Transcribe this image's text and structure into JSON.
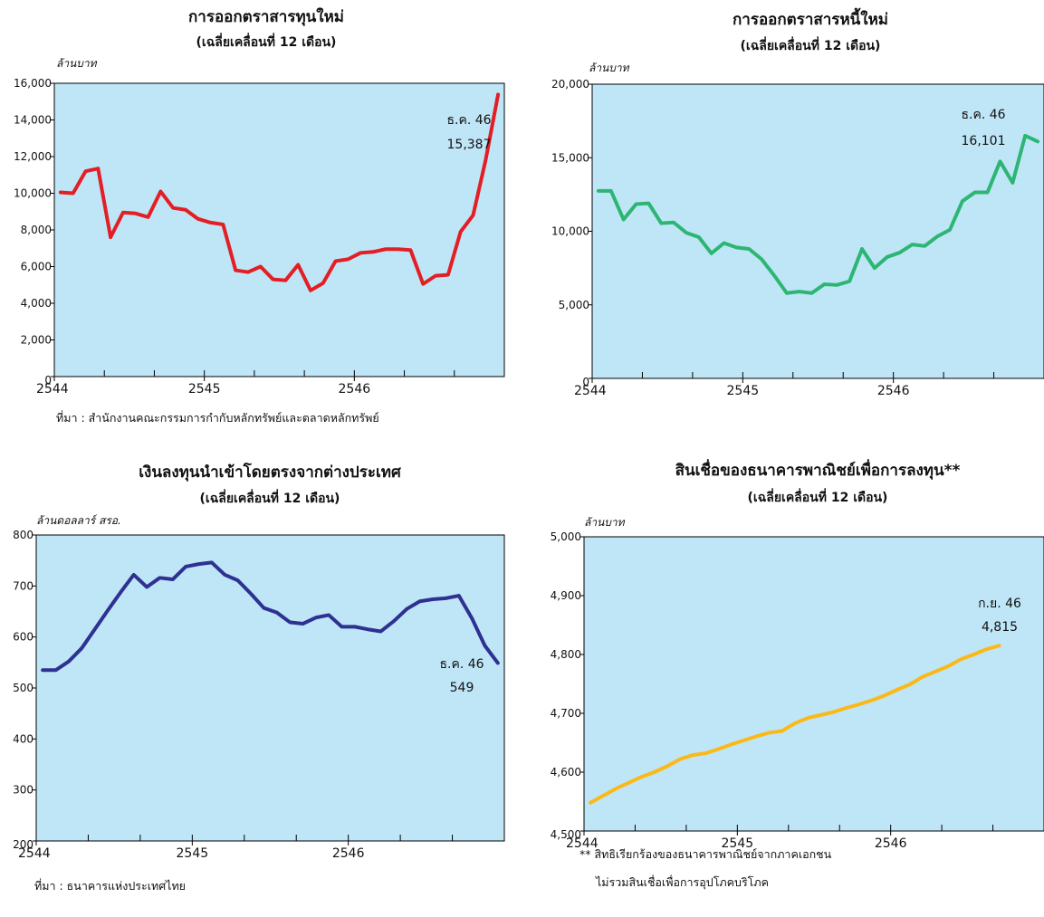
{
  "chart_data": [
    {
      "type": "line",
      "title": "การออกตราสารทุนใหม่",
      "subtitle": "(เฉลี่ยเคลื่อนที่ 12 เดือน)",
      "ylabel": "ล้านบาท",
      "ylim": [
        0,
        16000
      ],
      "yticks": [
        0,
        2000,
        4000,
        6000,
        8000,
        10000,
        12000,
        14000,
        16000
      ],
      "ytick_labels": [
        "0",
        "2,000",
        "4,000",
        "6,000",
        "8,000",
        "10,000",
        "12,000",
        "14,000",
        "16,000"
      ],
      "x_tick_labels": [
        "2544",
        "2545",
        "2546"
      ],
      "x_range": [
        "2544-01",
        "2546-12"
      ],
      "grid": false,
      "series": [
        {
          "color": "#e31e24",
          "x": [
            "2544-01",
            "2544-02",
            "2544-03",
            "2544-04",
            "2544-05",
            "2544-06",
            "2544-07",
            "2544-08",
            "2544-09",
            "2544-10",
            "2544-11",
            "2544-12",
            "2545-01",
            "2545-02",
            "2545-03",
            "2545-04",
            "2545-05",
            "2545-06",
            "2545-07",
            "2545-08",
            "2545-09",
            "2545-10",
            "2545-11",
            "2545-12",
            "2546-01",
            "2546-02",
            "2546-03",
            "2546-04",
            "2546-05",
            "2546-06",
            "2546-07",
            "2546-08",
            "2546-09",
            "2546-10",
            "2546-11",
            "2546-12"
          ],
          "values": [
            10050,
            10000,
            11200,
            11350,
            7600,
            8950,
            8900,
            8700,
            10100,
            9200,
            9100,
            8600,
            8400,
            8300,
            5800,
            5700,
            6000,
            5300,
            5250,
            6100,
            4700,
            5100,
            6300,
            6400,
            6750,
            6800,
            6950,
            6950,
            6900,
            5050,
            5500,
            5550,
            7900,
            8800,
            11800,
            15387
          ]
        }
      ],
      "annotations": [
        {
          "label": "ธ.ค. 46",
          "value": "15,387"
        }
      ],
      "source": "ที่มา : สำนักงานคณะกรรมการกำกับหลักทรัพย์และตลาดหลักทรัพย์"
    },
    {
      "type": "line",
      "title": "การออกตราสารหนี้ใหม่",
      "subtitle": "(เฉลี่ยเคลื่อนที่ 12 เดือน)",
      "ylabel": "ล้านบาท",
      "ylim": [
        0,
        20000
      ],
      "yticks": [
        0,
        5000,
        10000,
        15000,
        20000
      ],
      "ytick_labels": [
        "0",
        "5,000",
        "10,000",
        "15,000",
        "20,000"
      ],
      "x_tick_labels": [
        "2544",
        "2545",
        "2546"
      ],
      "x_range": [
        "2544-01",
        "2546-12"
      ],
      "grid": false,
      "series": [
        {
          "color": "#2db673",
          "x": [
            "2544-01",
            "2544-02",
            "2544-03",
            "2544-04",
            "2544-05",
            "2544-06",
            "2544-07",
            "2544-08",
            "2544-09",
            "2544-10",
            "2544-11",
            "2544-12",
            "2545-01",
            "2545-02",
            "2545-03",
            "2545-04",
            "2545-05",
            "2545-06",
            "2545-07",
            "2545-08",
            "2545-09",
            "2545-10",
            "2545-11",
            "2545-12",
            "2546-01",
            "2546-02",
            "2546-03",
            "2546-04",
            "2546-05",
            "2546-06",
            "2546-07",
            "2546-08",
            "2546-09",
            "2546-10",
            "2546-11",
            "2546-12"
          ],
          "values": [
            12750,
            12750,
            10800,
            11850,
            11900,
            10550,
            10600,
            9900,
            9600,
            8500,
            9200,
            8900,
            8800,
            8100,
            7000,
            5800,
            5900,
            5800,
            6400,
            6350,
            6600,
            8800,
            7500,
            8250,
            8550,
            9100,
            9000,
            9650,
            10100,
            12050,
            12650,
            12650,
            14750,
            13300,
            16500,
            16101
          ]
        }
      ],
      "annotations": [
        {
          "label": "ธ.ค. 46",
          "value": "16,101"
        }
      ],
      "source": ""
    },
    {
      "type": "line",
      "title": "เงินลงทุนนำเข้าโดยตรงจากต่างประเทศ",
      "subtitle": "(เฉลี่ยเคลื่อนที่ 12 เดือน)",
      "ylabel": "ล้านดอลลาร์ สรอ.",
      "ylim": [
        200,
        800
      ],
      "yticks": [
        200,
        300,
        400,
        500,
        600,
        700,
        800
      ],
      "ytick_labels": [
        "200",
        "300",
        "400",
        "500",
        "600",
        "700",
        "800"
      ],
      "x_tick_labels": [
        "2544",
        "2545",
        "2546"
      ],
      "x_range": [
        "2544-01",
        "2546-12"
      ],
      "grid": false,
      "series": [
        {
          "color": "#2e3192",
          "x": [
            "2544-01",
            "2544-02",
            "2544-03",
            "2544-04",
            "2544-05",
            "2544-06",
            "2544-07",
            "2544-08",
            "2544-09",
            "2544-10",
            "2544-11",
            "2544-12",
            "2545-01",
            "2545-02",
            "2545-03",
            "2545-04",
            "2545-05",
            "2545-06",
            "2545-07",
            "2545-08",
            "2545-09",
            "2545-10",
            "2545-11",
            "2545-12",
            "2546-01",
            "2546-02",
            "2546-03",
            "2546-04",
            "2546-05",
            "2546-06",
            "2546-07",
            "2546-08",
            "2546-09",
            "2546-10",
            "2546-11",
            "2546-12"
          ],
          "values": [
            535,
            535,
            552,
            578,
            615,
            652,
            688,
            722,
            698,
            716,
            713,
            738,
            743,
            746,
            722,
            711,
            685,
            657,
            648,
            629,
            626,
            638,
            643,
            620,
            620,
            615,
            611,
            631,
            655,
            670,
            674,
            676,
            681,
            637,
            583,
            549
          ]
        }
      ],
      "annotations": [
        {
          "label": "ธ.ค. 46",
          "value": "549"
        }
      ],
      "source": "ที่มา : ธนาคารแห่งประเทศไทย"
    },
    {
      "type": "line",
      "title": "สินเชื่อของธนาคารพาณิชย์เพื่อการลงทุน**",
      "subtitle": "(เฉลี่ยเคลื่อนที่ 12 เดือน)",
      "ylabel": "ล้านบาท",
      "ylim": [
        4500,
        5000
      ],
      "yticks": [
        4500,
        4600,
        4700,
        4800,
        4900,
        5000
      ],
      "ytick_labels": [
        "4,500",
        "4,600",
        "4,700",
        "4,800",
        "4,900",
        "5,000"
      ],
      "x_tick_labels": [
        "2544",
        "2545",
        "2546"
      ],
      "x_range": [
        "2544-01",
        "2546-12"
      ],
      "grid": false,
      "series": [
        {
          "color": "#fbb917",
          "x": [
            "2544-01",
            "2544-02",
            "2544-03",
            "2544-04",
            "2544-05",
            "2544-06",
            "2544-07",
            "2544-08",
            "2544-09",
            "2544-10",
            "2544-11",
            "2544-12",
            "2545-01",
            "2545-02",
            "2545-03",
            "2545-04",
            "2545-05",
            "2545-06",
            "2545-07",
            "2545-08",
            "2545-09",
            "2545-10",
            "2545-11",
            "2545-12",
            "2546-01",
            "2546-02",
            "2546-03",
            "2546-04",
            "2546-05",
            "2546-06",
            "2546-07",
            "2546-08",
            "2546-09"
          ],
          "values": [
            4548,
            4560,
            4572,
            4582,
            4592,
            4600,
            4610,
            4622,
            4629,
            4632,
            4639,
            4647,
            4654,
            4661,
            4667,
            4670,
            4683,
            4692,
            4697,
            4702,
            4709,
            4715,
            4722,
            4730,
            4740,
            4749,
            4762,
            4771,
            4780,
            4792,
            4800,
            4809,
            4815
          ]
        }
      ],
      "annotations": [
        {
          "label": "ก.ย. 46",
          "value": "4,815"
        }
      ],
      "footnote": [
        "** สิทธิเรียกร้องของธนาคารพาณิชย์จากภาคเอกชน",
        "ไม่รวมสินเชื่อเพื่อการอุปโภคบริโภค"
      ]
    }
  ],
  "colors": {
    "plot_background": "#bfe6f7",
    "axis": "#000000"
  }
}
